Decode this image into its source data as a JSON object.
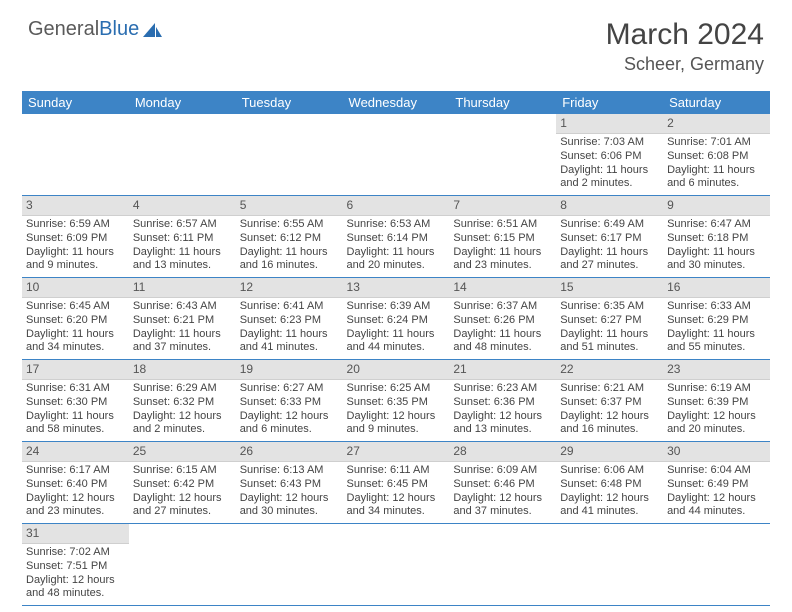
{
  "logo": {
    "text1": "General",
    "text2": "Blue"
  },
  "title": {
    "month": "March 2024",
    "location": "Scheer, Germany"
  },
  "colors": {
    "header_bg": "#3d84c6",
    "header_fg": "#ffffff",
    "daynum_bg": "#e3e3e3",
    "rule": "#3d84c6",
    "text": "#444444"
  },
  "day_labels": [
    "Sunday",
    "Monday",
    "Tuesday",
    "Wednesday",
    "Thursday",
    "Friday",
    "Saturday"
  ],
  "weeks": [
    [
      null,
      null,
      null,
      null,
      null,
      {
        "n": "1",
        "sr": "Sunrise: 7:03 AM",
        "ss": "Sunset: 6:06 PM",
        "dl": "Daylight: 11 hours and 2 minutes."
      },
      {
        "n": "2",
        "sr": "Sunrise: 7:01 AM",
        "ss": "Sunset: 6:08 PM",
        "dl": "Daylight: 11 hours and 6 minutes."
      }
    ],
    [
      {
        "n": "3",
        "sr": "Sunrise: 6:59 AM",
        "ss": "Sunset: 6:09 PM",
        "dl": "Daylight: 11 hours and 9 minutes."
      },
      {
        "n": "4",
        "sr": "Sunrise: 6:57 AM",
        "ss": "Sunset: 6:11 PM",
        "dl": "Daylight: 11 hours and 13 minutes."
      },
      {
        "n": "5",
        "sr": "Sunrise: 6:55 AM",
        "ss": "Sunset: 6:12 PM",
        "dl": "Daylight: 11 hours and 16 minutes."
      },
      {
        "n": "6",
        "sr": "Sunrise: 6:53 AM",
        "ss": "Sunset: 6:14 PM",
        "dl": "Daylight: 11 hours and 20 minutes."
      },
      {
        "n": "7",
        "sr": "Sunrise: 6:51 AM",
        "ss": "Sunset: 6:15 PM",
        "dl": "Daylight: 11 hours and 23 minutes."
      },
      {
        "n": "8",
        "sr": "Sunrise: 6:49 AM",
        "ss": "Sunset: 6:17 PM",
        "dl": "Daylight: 11 hours and 27 minutes."
      },
      {
        "n": "9",
        "sr": "Sunrise: 6:47 AM",
        "ss": "Sunset: 6:18 PM",
        "dl": "Daylight: 11 hours and 30 minutes."
      }
    ],
    [
      {
        "n": "10",
        "sr": "Sunrise: 6:45 AM",
        "ss": "Sunset: 6:20 PM",
        "dl": "Daylight: 11 hours and 34 minutes."
      },
      {
        "n": "11",
        "sr": "Sunrise: 6:43 AM",
        "ss": "Sunset: 6:21 PM",
        "dl": "Daylight: 11 hours and 37 minutes."
      },
      {
        "n": "12",
        "sr": "Sunrise: 6:41 AM",
        "ss": "Sunset: 6:23 PM",
        "dl": "Daylight: 11 hours and 41 minutes."
      },
      {
        "n": "13",
        "sr": "Sunrise: 6:39 AM",
        "ss": "Sunset: 6:24 PM",
        "dl": "Daylight: 11 hours and 44 minutes."
      },
      {
        "n": "14",
        "sr": "Sunrise: 6:37 AM",
        "ss": "Sunset: 6:26 PM",
        "dl": "Daylight: 11 hours and 48 minutes."
      },
      {
        "n": "15",
        "sr": "Sunrise: 6:35 AM",
        "ss": "Sunset: 6:27 PM",
        "dl": "Daylight: 11 hours and 51 minutes."
      },
      {
        "n": "16",
        "sr": "Sunrise: 6:33 AM",
        "ss": "Sunset: 6:29 PM",
        "dl": "Daylight: 11 hours and 55 minutes."
      }
    ],
    [
      {
        "n": "17",
        "sr": "Sunrise: 6:31 AM",
        "ss": "Sunset: 6:30 PM",
        "dl": "Daylight: 11 hours and 58 minutes."
      },
      {
        "n": "18",
        "sr": "Sunrise: 6:29 AM",
        "ss": "Sunset: 6:32 PM",
        "dl": "Daylight: 12 hours and 2 minutes."
      },
      {
        "n": "19",
        "sr": "Sunrise: 6:27 AM",
        "ss": "Sunset: 6:33 PM",
        "dl": "Daylight: 12 hours and 6 minutes."
      },
      {
        "n": "20",
        "sr": "Sunrise: 6:25 AM",
        "ss": "Sunset: 6:35 PM",
        "dl": "Daylight: 12 hours and 9 minutes."
      },
      {
        "n": "21",
        "sr": "Sunrise: 6:23 AM",
        "ss": "Sunset: 6:36 PM",
        "dl": "Daylight: 12 hours and 13 minutes."
      },
      {
        "n": "22",
        "sr": "Sunrise: 6:21 AM",
        "ss": "Sunset: 6:37 PM",
        "dl": "Daylight: 12 hours and 16 minutes."
      },
      {
        "n": "23",
        "sr": "Sunrise: 6:19 AM",
        "ss": "Sunset: 6:39 PM",
        "dl": "Daylight: 12 hours and 20 minutes."
      }
    ],
    [
      {
        "n": "24",
        "sr": "Sunrise: 6:17 AM",
        "ss": "Sunset: 6:40 PM",
        "dl": "Daylight: 12 hours and 23 minutes."
      },
      {
        "n": "25",
        "sr": "Sunrise: 6:15 AM",
        "ss": "Sunset: 6:42 PM",
        "dl": "Daylight: 12 hours and 27 minutes."
      },
      {
        "n": "26",
        "sr": "Sunrise: 6:13 AM",
        "ss": "Sunset: 6:43 PM",
        "dl": "Daylight: 12 hours and 30 minutes."
      },
      {
        "n": "27",
        "sr": "Sunrise: 6:11 AM",
        "ss": "Sunset: 6:45 PM",
        "dl": "Daylight: 12 hours and 34 minutes."
      },
      {
        "n": "28",
        "sr": "Sunrise: 6:09 AM",
        "ss": "Sunset: 6:46 PM",
        "dl": "Daylight: 12 hours and 37 minutes."
      },
      {
        "n": "29",
        "sr": "Sunrise: 6:06 AM",
        "ss": "Sunset: 6:48 PM",
        "dl": "Daylight: 12 hours and 41 minutes."
      },
      {
        "n": "30",
        "sr": "Sunrise: 6:04 AM",
        "ss": "Sunset: 6:49 PM",
        "dl": "Daylight: 12 hours and 44 minutes."
      }
    ],
    [
      {
        "n": "31",
        "sr": "Sunrise: 7:02 AM",
        "ss": "Sunset: 7:51 PM",
        "dl": "Daylight: 12 hours and 48 minutes."
      },
      null,
      null,
      null,
      null,
      null,
      null
    ]
  ]
}
